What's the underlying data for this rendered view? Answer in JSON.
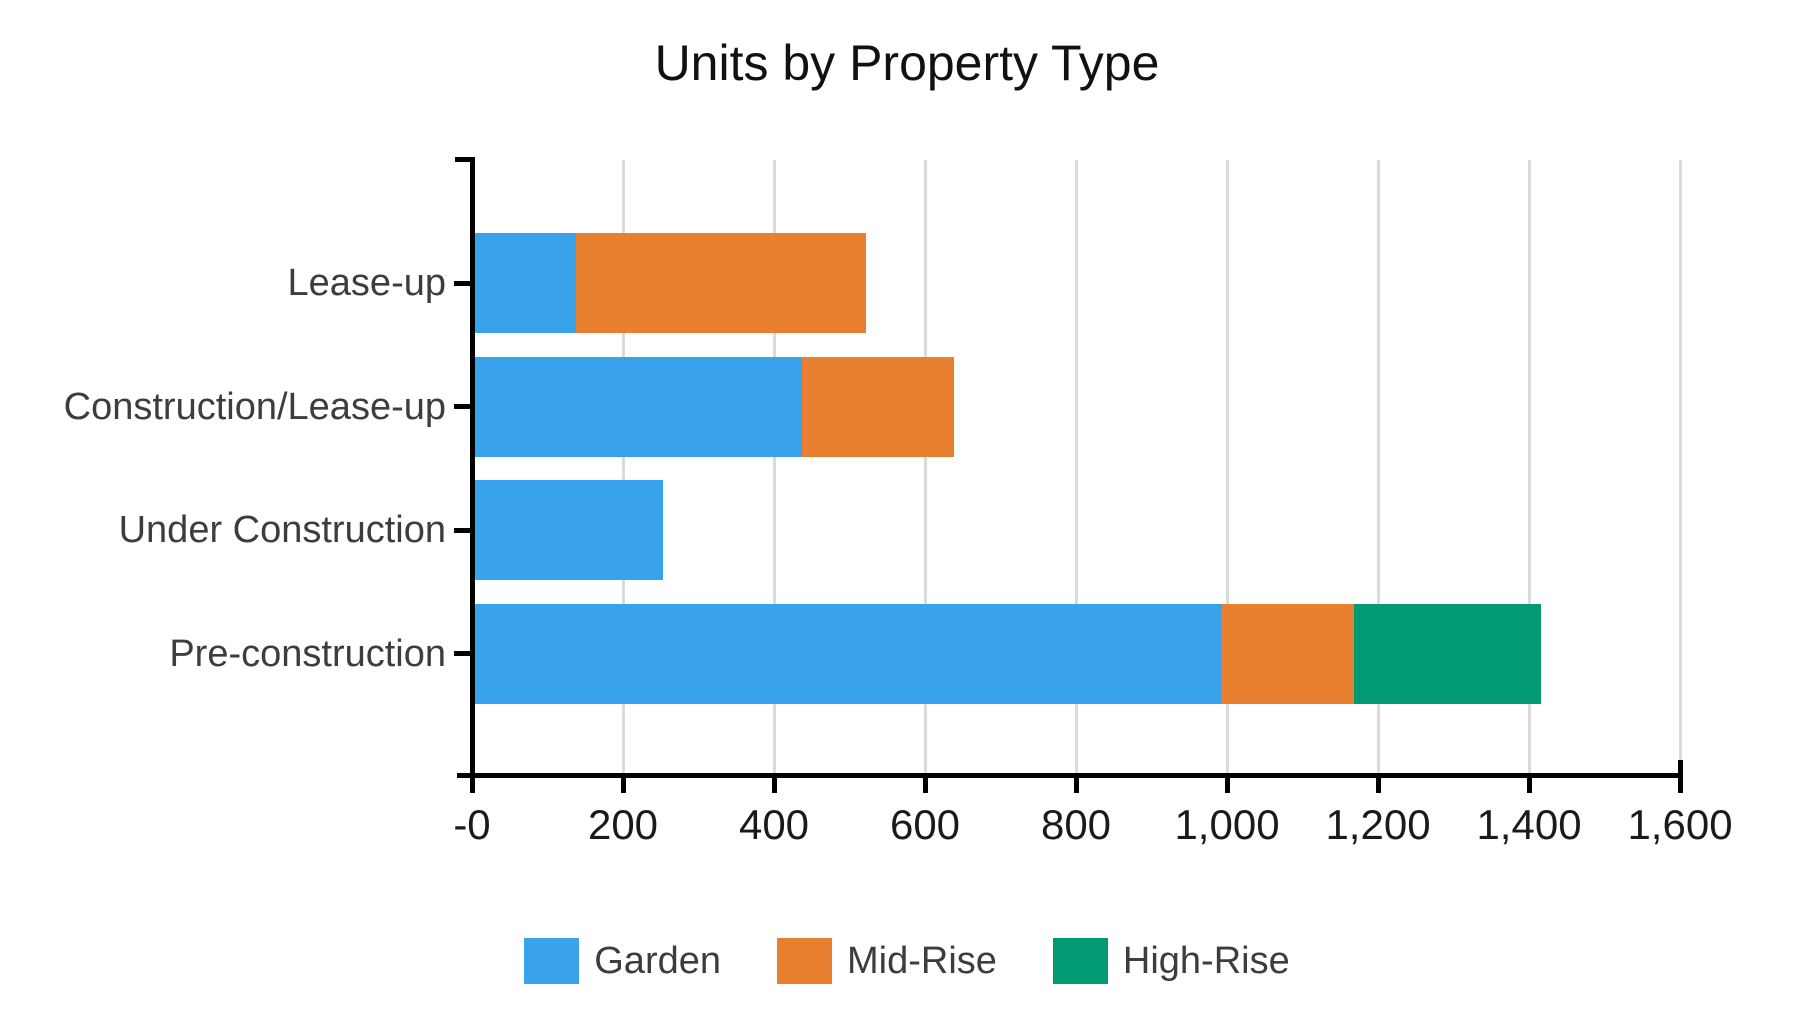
{
  "title": "Units by Property Type",
  "colors": {
    "garden": "#38A3EA",
    "mid_rise": "#E98030",
    "high_rise": "#029A72",
    "axis": "#000000",
    "gridline": "#DADADA",
    "title_text": "#111111",
    "tick_text": "#1a1a1a",
    "category_text": "#3d3d3d"
  },
  "chart_data": {
    "type": "bar",
    "orientation": "horizontal",
    "stacked": true,
    "title": "Units by Property Type",
    "categories": [
      "Lease-up",
      "Construction/Lease-up",
      "Under Construction",
      "Pre-construction"
    ],
    "series": [
      {
        "name": "Garden",
        "color": "#38A3EA",
        "values": [
          138,
          437,
          253,
          993
        ]
      },
      {
        "name": "Mid-Rise",
        "color": "#E98030",
        "values": [
          384,
          202,
          0,
          175
        ]
      },
      {
        "name": "High-Rise",
        "color": "#029A72",
        "values": [
          0,
          0,
          0,
          248
        ]
      }
    ],
    "totals": [
      522,
      639,
      253,
      1416
    ],
    "xlim": [
      0,
      1600
    ],
    "x_tick_labels": [
      "-0",
      "200",
      "400",
      "600",
      "800",
      "1,000",
      "1,200",
      "1,400",
      "1,600"
    ],
    "x_tick_values": [
      0,
      200,
      400,
      600,
      800,
      1000,
      1200,
      1400,
      1600
    ],
    "xlabel": "",
    "ylabel": "",
    "grid": true,
    "legend_position": "bottom",
    "legend_items": [
      "Garden",
      "Mid-Rise",
      "High-Rise"
    ]
  }
}
